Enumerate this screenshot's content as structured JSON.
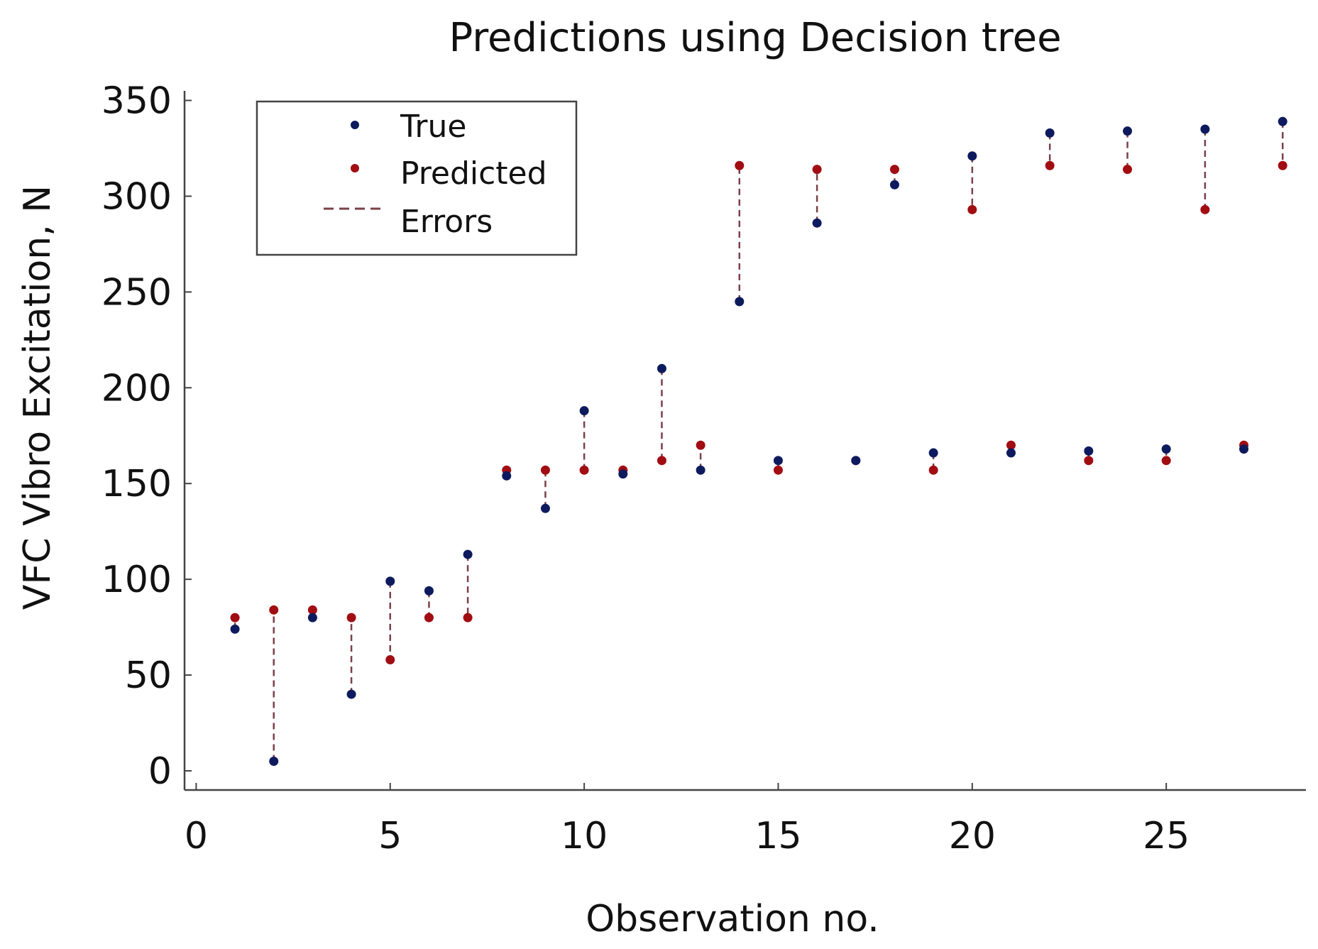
{
  "chart_data": {
    "type": "scatter",
    "title": "Predictions using Decision tree",
    "xlabel": "Observation no.",
    "ylabel": "VFC Vibro Excitation, N",
    "xlim": [
      -0.3,
      28.6
    ],
    "ylim": [
      -10,
      355
    ],
    "xticks": [
      0,
      5,
      10,
      15,
      20,
      25
    ],
    "yticks": [
      0,
      50,
      100,
      150,
      200,
      250,
      300,
      350
    ],
    "legend": {
      "position": "top-left",
      "entries": [
        {
          "label": "True",
          "kind": "marker",
          "color": "#0d1b5e"
        },
        {
          "label": "Predicted",
          "kind": "marker",
          "color": "#a10d12"
        },
        {
          "label": "Errors",
          "kind": "dashed-line",
          "color": "#7a4048"
        }
      ]
    },
    "colors": {
      "true": "#0d1b5e",
      "predicted": "#a10d12",
      "errors": "#7a4048",
      "axis": "#444444"
    },
    "x": [
      1,
      2,
      3,
      4,
      5,
      6,
      7,
      8,
      9,
      10,
      11,
      12,
      13,
      14,
      15,
      16,
      17,
      18,
      19,
      20,
      21,
      22,
      23,
      24,
      25,
      26,
      27,
      28
    ],
    "series": [
      {
        "name": "True",
        "values": [
          74,
          5,
          80,
          40,
          99,
          94,
          113,
          154,
          137,
          188,
          155,
          210,
          157,
          245,
          162,
          286,
          162,
          306,
          166,
          321,
          166,
          333,
          167,
          334,
          168,
          335,
          168,
          339
        ]
      },
      {
        "name": "Predicted",
        "values": [
          80,
          84,
          84,
          80,
          58,
          80,
          80,
          157,
          157,
          157,
          157,
          162,
          170,
          316,
          157,
          314,
          162,
          314,
          157,
          293,
          170,
          316,
          162,
          314,
          162,
          293,
          170,
          316
        ]
      }
    ]
  }
}
